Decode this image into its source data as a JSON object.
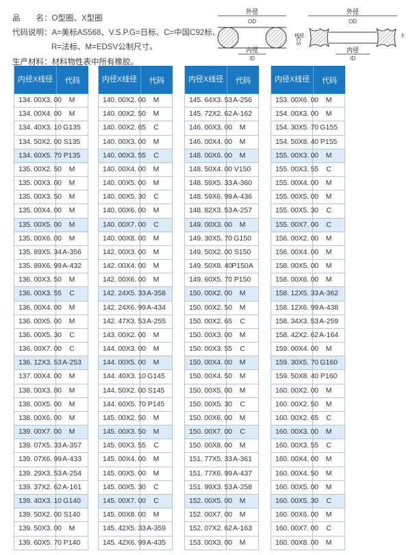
{
  "info": {
    "product_line": "品　　名：O型圈、X型圈",
    "code_line1": "代码说明：A=美标AS568、V.S.P.G=日标、C=中国C92标、",
    "code_line2": "R=法标、M=EDSV公制尺寸。",
    "material_line": "生产材料：材料物性表中所有橡胶。"
  },
  "diagram": {
    "od_cn": "外径",
    "od": "OD",
    "id_cn": "内径",
    "id": "ID",
    "cs_cn": "线径",
    "cs": "CS"
  },
  "colors": {
    "header": "#1b78c2",
    "highlight": "#dcebf8"
  },
  "headers": {
    "size": "内径X线径",
    "code": "代码"
  },
  "tables": [
    {
      "rows": [
        [
          "134. 00X3. 00",
          "M"
        ],
        [
          "134. 00X4. 00",
          "M"
        ],
        [
          "134. 40X3. 10",
          "G135"
        ],
        [
          "134. 50X2. 00",
          "S135"
        ],
        [
          "134. 60X5. 70",
          "P135"
        ],
        [
          "135. 00X2. 50",
          "M"
        ],
        [
          "135. 00X3. 00",
          "M"
        ],
        [
          "135. 00X3. 50",
          "M"
        ],
        [
          "135. 00X4. 00",
          "M"
        ],
        [
          "135. 00X5. 00",
          "M"
        ],
        [
          "135. 00X6. 00",
          "M"
        ],
        [
          "135. 89X5. 34",
          "A-356"
        ],
        [
          "135. 89X6. 99",
          "A-432"
        ],
        [
          "136. 00X3. 50",
          "M"
        ],
        [
          "136. 00X3. 55",
          "C"
        ],
        [
          "136. 00X4. 00",
          "M"
        ],
        [
          "136. 00X5. 00",
          "M"
        ],
        [
          "136. 00X5. 30",
          "C"
        ],
        [
          "136. 00X7. 00",
          "C"
        ],
        [
          "136. 12X3. 53",
          "A-253"
        ],
        [
          "137. 00X4. 00",
          "M"
        ],
        [
          "138. 00X3. 00",
          "M"
        ],
        [
          "138. 00X5. 00",
          "M"
        ],
        [
          "138. 00X6. 00",
          "M"
        ],
        [
          "139. 00X7. 00",
          "M"
        ],
        [
          "139. 07X5. 33",
          "A-357"
        ],
        [
          "139. 07X6. 99",
          "A-433"
        ],
        [
          "139. 29X3. 53",
          "A-254"
        ],
        [
          "139. 37X2. 62",
          "A-161"
        ],
        [
          "139. 40X3. 10",
          "G140"
        ],
        [
          "139. 50X2. 00",
          "S140"
        ],
        [
          "139. 50X3. 00",
          "M"
        ],
        [
          "139. 60X5. 70",
          "P140"
        ]
      ]
    },
    {
      "rows": [
        [
          "140. 00X2. 00",
          "M"
        ],
        [
          "140. 00X2. 50",
          "M"
        ],
        [
          "140. 00X2. 65",
          "C"
        ],
        [
          "140. 00X3. 00",
          "M"
        ],
        [
          "140. 00X3. 55",
          "C"
        ],
        [
          "140. 00X4. 00",
          "M"
        ],
        [
          "140. 00X5. 00",
          "M"
        ],
        [
          "140. 00X5. 30",
          "C"
        ],
        [
          "140. 00X6. 00",
          "M"
        ],
        [
          "140. 00X7. 00",
          "C"
        ],
        [
          "140. 00X8. 00",
          "M"
        ],
        [
          "142. 00X3. 00",
          "M"
        ],
        [
          "142. 00X4. 00",
          "M"
        ],
        [
          "142. 00X6. 00",
          "M"
        ],
        [
          "142. 24X5. 33",
          "A-358"
        ],
        [
          "142. 24X6. 99",
          "A-434"
        ],
        [
          "142. 47X3. 53",
          "A-255"
        ],
        [
          "143. 00X2. 00",
          "M"
        ],
        [
          "144. 00X3. 00",
          "M"
        ],
        [
          "144. 00X5. 00",
          "M"
        ],
        [
          "144. 40X3. 10",
          "G145"
        ],
        [
          "144. 50X2. 00",
          "S145"
        ],
        [
          "144. 60X5. 70",
          "P145"
        ],
        [
          "145. 00X2. 50",
          "M"
        ],
        [
          "145. 00X3. 50",
          "M"
        ],
        [
          "145. 00X3. 55",
          "C"
        ],
        [
          "145. 00X4. 00",
          "M"
        ],
        [
          "145. 00X5. 00",
          "M"
        ],
        [
          "145. 00X5. 30",
          "C"
        ],
        [
          "145. 00X7. 00",
          "C"
        ],
        [
          "145. 00X8. 00",
          "M"
        ],
        [
          "145. 42X5. 33",
          "A-359"
        ],
        [
          "145. 42X6. 99",
          "A-435"
        ]
      ]
    },
    {
      "rows": [
        [
          "145. 64X3. 53",
          "A-256"
        ],
        [
          "145. 72X2. 62",
          "A-162"
        ],
        [
          "146. 00X3. 00",
          "M"
        ],
        [
          "146. 00X4. 00",
          "M"
        ],
        [
          "148. 00X6. 00",
          "M"
        ],
        [
          "148. 50X4. 00",
          "V150"
        ],
        [
          "148. 59X5. 33",
          "A-360"
        ],
        [
          "148. 59X6. 99",
          "A-436"
        ],
        [
          "148. 82X3. 53",
          "A-257"
        ],
        [
          "149. 00X3. 00",
          "M"
        ],
        [
          "149. 30X5. 70",
          "G150"
        ],
        [
          "149. 50X2. 00",
          "S150"
        ],
        [
          "149. 50X8. 40",
          "P150A"
        ],
        [
          "149. 60X5. 70",
          "P150"
        ],
        [
          "150. 00X2. 00",
          "M"
        ],
        [
          "150. 00X2. 50",
          "M"
        ],
        [
          "150. 00X2. 65",
          "C"
        ],
        [
          "150. 00X3. 00",
          "M"
        ],
        [
          "150. 00X3. 55",
          "C"
        ],
        [
          "150. 00X4. 00",
          "M"
        ],
        [
          "150. 00X4. 50",
          "M"
        ],
        [
          "150. 00X5. 00",
          "M"
        ],
        [
          "150. 00X5. 30",
          "C"
        ],
        [
          "150. 00X6. 00",
          "M"
        ],
        [
          "150. 00X7. 00",
          "C"
        ],
        [
          "150. 00X8. 00",
          "M"
        ],
        [
          "151. 77X5. 33",
          "A-361"
        ],
        [
          "151. 77X6. 99",
          "A-437"
        ],
        [
          "151. 99X3. 53",
          "A-258"
        ],
        [
          "152. 00X5. 00",
          "M"
        ],
        [
          "152. 00X7. 00",
          "M"
        ],
        [
          "152. 07X2. 62",
          "A-163"
        ],
        [
          "153. 00X3. 00",
          "M"
        ]
      ]
    },
    {
      "rows": [
        [
          "153. 00X6. 00",
          "M"
        ],
        [
          "154. 00X3. 00",
          "M"
        ],
        [
          "154. 30X5. 70",
          "G155"
        ],
        [
          "154. 50X8. 40",
          "P155"
        ],
        [
          "155. 00X3. 00",
          "M"
        ],
        [
          "155. 00X3. 55",
          "C"
        ],
        [
          "155. 00X4. 00",
          "M"
        ],
        [
          "155. 00X5. 00",
          "M"
        ],
        [
          "155. 00X5. 30",
          "C"
        ],
        [
          "155. 00X7. 00",
          "C"
        ],
        [
          "156. 00X2. 00",
          "M"
        ],
        [
          "156. 00X4. 00",
          "M"
        ],
        [
          "158. 00X5. 00",
          "M"
        ],
        [
          "158. 00X6. 00",
          "M"
        ],
        [
          "158. 12X5. 33",
          "A-362"
        ],
        [
          "158. 12X6. 99",
          "A-438"
        ],
        [
          "158. 34X3. 53",
          "A-259"
        ],
        [
          "158. 42X2. 62",
          "A-164"
        ],
        [
          "159. 00X4. 00",
          "M"
        ],
        [
          "159. 30X5. 70",
          "G160"
        ],
        [
          "159. 50X8. 40",
          "P160"
        ],
        [
          "160. 00X2. 00",
          "M"
        ],
        [
          "160. 00X2. 50",
          "M"
        ],
        [
          "160. 00X2. 65",
          "C"
        ],
        [
          "160. 00X3. 00",
          "M"
        ],
        [
          "160. 00X3. 55",
          "C"
        ],
        [
          "160. 00X4. 00",
          "M"
        ],
        [
          "160. 00X4. 50",
          "M"
        ],
        [
          "160. 00X5. 00",
          "M"
        ],
        [
          "160. 00X5. 30",
          "C"
        ],
        [
          "160. 00X6. 00",
          "M"
        ],
        [
          "160. 00X7. 00",
          "C"
        ],
        [
          "160. 00X8. 00",
          "M"
        ]
      ]
    }
  ]
}
